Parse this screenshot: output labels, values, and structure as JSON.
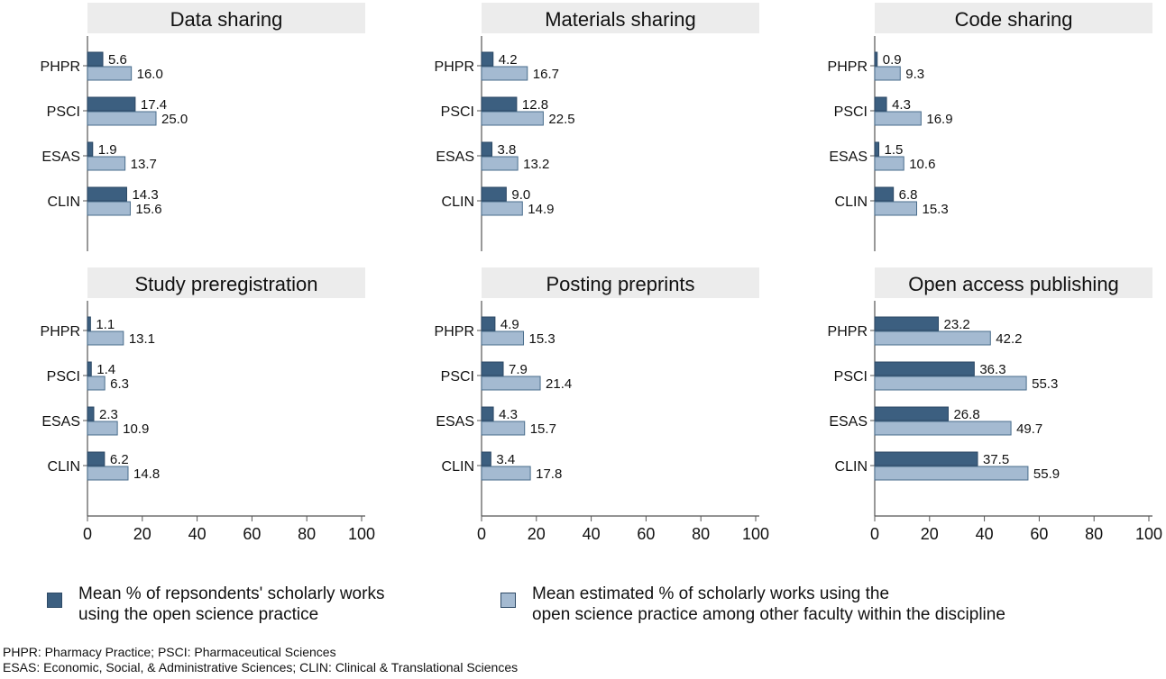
{
  "colors": {
    "own": "#3c5f80",
    "own_border": "#2b4763",
    "others": "#a4bad1",
    "others_border": "#4a6d8c",
    "header_bg": "#ececec",
    "axis": "#555555"
  },
  "chart_data": [
    {
      "type": "bar",
      "orientation": "horizontal",
      "title": "Data sharing",
      "categories": [
        "PHPR",
        "PSCI",
        "ESAS",
        "CLIN"
      ],
      "series": [
        {
          "name": "Mean % of repsondents' scholarly works using the open science practice",
          "values": [
            5.6,
            17.4,
            1.9,
            14.3
          ]
        },
        {
          "name": "Mean estimated % of scholarly works using the open science practice among other faculty within the discipline",
          "values": [
            16.0,
            25.0,
            13.7,
            15.6
          ]
        }
      ],
      "value_labels": [
        [
          "5.6",
          "17.4",
          "1.9",
          "14.3"
        ],
        [
          "16.0",
          "25.0",
          "13.7",
          "15.6"
        ]
      ],
      "xlim": [
        0,
        100
      ],
      "xticks": [],
      "show_x_axis": false
    },
    {
      "type": "bar",
      "orientation": "horizontal",
      "title": "Materials sharing",
      "categories": [
        "PHPR",
        "PSCI",
        "ESAS",
        "CLIN"
      ],
      "series": [
        {
          "name": "Mean % of repsondents' scholarly works using the open science practice",
          "values": [
            4.2,
            12.8,
            3.8,
            9.0
          ]
        },
        {
          "name": "Mean estimated % of scholarly works using the open science practice among other faculty within the discipline",
          "values": [
            16.7,
            22.5,
            13.2,
            14.9
          ]
        }
      ],
      "value_labels": [
        [
          "4.2",
          "12.8",
          "3.8",
          "9.0"
        ],
        [
          "16.7",
          "22.5",
          "13.2",
          "14.9"
        ]
      ],
      "xlim": [
        0,
        100
      ],
      "xticks": [],
      "show_x_axis": false
    },
    {
      "type": "bar",
      "orientation": "horizontal",
      "title": "Code sharing",
      "categories": [
        "PHPR",
        "PSCI",
        "ESAS",
        "CLIN"
      ],
      "series": [
        {
          "name": "Mean % of repsondents' scholarly works using the open science practice",
          "values": [
            0.9,
            4.3,
            1.5,
            6.8
          ]
        },
        {
          "name": "Mean estimated % of scholarly works using the open science practice among other faculty within the discipline",
          "values": [
            9.3,
            16.9,
            10.6,
            15.3
          ]
        }
      ],
      "value_labels": [
        [
          "0.9",
          "4.3",
          "1.5",
          "6.8"
        ],
        [
          "9.3",
          "16.9",
          "10.6",
          "15.3"
        ]
      ],
      "xlim": [
        0,
        100
      ],
      "xticks": [],
      "show_x_axis": false
    },
    {
      "type": "bar",
      "orientation": "horizontal",
      "title": "Study preregistration",
      "categories": [
        "PHPR",
        "PSCI",
        "ESAS",
        "CLIN"
      ],
      "series": [
        {
          "name": "Mean % of repsondents' scholarly works using the open science practice",
          "values": [
            1.1,
            1.4,
            2.3,
            6.2
          ]
        },
        {
          "name": "Mean estimated % of scholarly works using the open science practice among other faculty within the discipline",
          "values": [
            13.1,
            6.3,
            10.9,
            14.8
          ]
        }
      ],
      "value_labels": [
        [
          "1.1",
          "1.4",
          "2.3",
          "6.2"
        ],
        [
          "13.1",
          "6.3",
          "10.9",
          "14.8"
        ]
      ],
      "xlim": [
        0,
        100
      ],
      "xticks": [
        "0",
        "20",
        "40",
        "60",
        "80",
        "100"
      ],
      "show_x_axis": true
    },
    {
      "type": "bar",
      "orientation": "horizontal",
      "title": "Posting preprints",
      "categories": [
        "PHPR",
        "PSCI",
        "ESAS",
        "CLIN"
      ],
      "series": [
        {
          "name": "Mean % of repsondents' scholarly works using the open science practice",
          "values": [
            4.9,
            7.9,
            4.3,
            3.4
          ]
        },
        {
          "name": "Mean estimated % of scholarly works using the open science practice among other faculty within the discipline",
          "values": [
            15.3,
            21.4,
            15.7,
            17.8
          ]
        }
      ],
      "value_labels": [
        [
          "4.9",
          "7.9",
          "4.3",
          "3.4"
        ],
        [
          "15.3",
          "21.4",
          "15.7",
          "17.8"
        ]
      ],
      "xlim": [
        0,
        100
      ],
      "xticks": [
        "0",
        "20",
        "40",
        "60",
        "80",
        "100"
      ],
      "show_x_axis": true
    },
    {
      "type": "bar",
      "orientation": "horizontal",
      "title": "Open access publishing",
      "categories": [
        "PHPR",
        "PSCI",
        "ESAS",
        "CLIN"
      ],
      "series": [
        {
          "name": "Mean % of repsondents' scholarly works using the open science practice",
          "values": [
            23.2,
            36.3,
            26.8,
            37.5
          ]
        },
        {
          "name": "Mean estimated % of scholarly works using the open science practice among other faculty within the discipline",
          "values": [
            42.2,
            55.3,
            49.7,
            55.9
          ]
        }
      ],
      "value_labels": [
        [
          "23.2",
          "36.3",
          "26.8",
          "37.5"
        ],
        [
          "42.2",
          "55.3",
          "49.7",
          "55.9"
        ]
      ],
      "xlim": [
        0,
        100
      ],
      "xticks": [
        "0",
        "20",
        "40",
        "60",
        "80",
        "100"
      ],
      "show_x_axis": true
    }
  ],
  "legend": {
    "own": {
      "line1": "Mean % of repsondents' scholarly works",
      "line2": "using the open science practice"
    },
    "others": {
      "line1": "Mean estimated % of scholarly works using the",
      "line2": "open science practice among other faculty within the discipline"
    }
  },
  "footnote": {
    "line1": "PHPR: Pharmacy Practice; PSCI: Pharmaceutical Sciences",
    "line2": "ESAS: Economic, Social, & Administrative Sciences; CLIN: Clinical  & Translational Sciences"
  }
}
